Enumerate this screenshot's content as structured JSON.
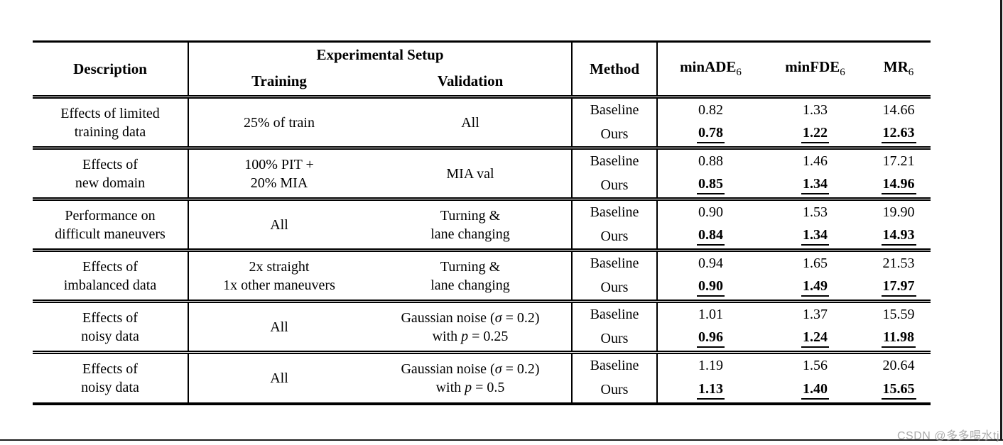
{
  "page": {
    "watermark": "CSDN @多多喝水tj"
  },
  "table": {
    "header": {
      "description": "Description",
      "experimental_setup": "Experimental Setup",
      "training": "Training",
      "validation": "Validation",
      "method": "Method",
      "metrics": [
        {
          "name": "minADE",
          "sub": "6"
        },
        {
          "name": "minFDE",
          "sub": "6"
        },
        {
          "name": "MR",
          "sub": "6"
        }
      ]
    },
    "rows": [
      {
        "description": [
          "Effects of limited",
          "training data"
        ],
        "training": [
          "25% of train"
        ],
        "validation": [
          "All"
        ],
        "baseline": {
          "label": "Baseline",
          "minADE": "0.82",
          "minFDE": "1.33",
          "MR": "14.66"
        },
        "ours": {
          "label": "Ours",
          "minADE": "0.78",
          "minFDE": "1.22",
          "MR": "12.63"
        }
      },
      {
        "description": [
          "Effects of",
          "new domain"
        ],
        "training": [
          "100% PIT +",
          "20% MIA"
        ],
        "validation": [
          "MIA val"
        ],
        "baseline": {
          "label": "Baseline",
          "minADE": "0.88",
          "minFDE": "1.46",
          "MR": "17.21"
        },
        "ours": {
          "label": "Ours",
          "minADE": "0.85",
          "minFDE": "1.34",
          "MR": "14.96"
        }
      },
      {
        "description": [
          "Performance on",
          "difficult maneuvers"
        ],
        "training": [
          "All"
        ],
        "validation": [
          "Turning &",
          "lane changing"
        ],
        "baseline": {
          "label": "Baseline",
          "minADE": "0.90",
          "minFDE": "1.53",
          "MR": "19.90"
        },
        "ours": {
          "label": "Ours",
          "minADE": "0.84",
          "minFDE": "1.34",
          "MR": "14.93"
        }
      },
      {
        "description": [
          "Effects of",
          "imbalanced data"
        ],
        "training": [
          "2x straight",
          "1x other maneuvers"
        ],
        "validation": [
          "Turning &",
          "lane changing"
        ],
        "baseline": {
          "label": "Baseline",
          "minADE": "0.94",
          "minFDE": "1.65",
          "MR": "21.53"
        },
        "ours": {
          "label": "Ours",
          "minADE": "0.90",
          "minFDE": "1.49",
          "MR": "17.97"
        }
      },
      {
        "description": [
          "Effects of",
          "noisy data"
        ],
        "training": [
          "All"
        ],
        "validation": [
          "Gaussian noise (σ = 0.2)",
          "with p = 0.25"
        ],
        "baseline": {
          "label": "Baseline",
          "minADE": "1.01",
          "minFDE": "1.37",
          "MR": "15.59"
        },
        "ours": {
          "label": "Ours",
          "minADE": "0.96",
          "minFDE": "1.24",
          "MR": "11.98"
        }
      },
      {
        "description": [
          "Effects of",
          "noisy data"
        ],
        "training": [
          "All"
        ],
        "validation": [
          "Gaussian noise (σ = 0.2)",
          "with p = 0.5"
        ],
        "baseline": {
          "label": "Baseline",
          "minADE": "1.19",
          "minFDE": "1.56",
          "MR": "20.64"
        },
        "ours": {
          "label": "Ours",
          "minADE": "1.13",
          "minFDE": "1.40",
          "MR": "15.65"
        }
      }
    ]
  }
}
